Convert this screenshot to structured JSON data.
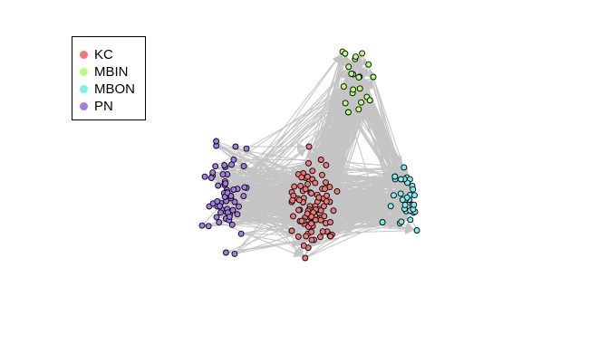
{
  "chart_data": {
    "type": "network",
    "edge_color": "#c4c4c4",
    "node_border_color": "#000000",
    "legend_placement": "top-left",
    "groups": [
      {
        "name": "KC",
        "color": "#f27878",
        "node_count": 95
      },
      {
        "name": "MBIN",
        "color": "#b6ff7a",
        "node_count": 22
      },
      {
        "name": "MBON",
        "color": "#7bf0f0",
        "node_count": 34
      },
      {
        "name": "PN",
        "color": "#a57be8",
        "node_count": 62
      }
    ]
  }
}
